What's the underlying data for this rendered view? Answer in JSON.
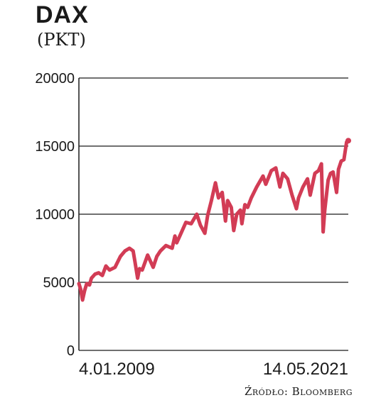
{
  "chart_data": {
    "type": "line",
    "title": "DAX",
    "subtitle": "(PKT)",
    "source": "Źródło: Bloomberg",
    "xlabel": "",
    "ylabel": "",
    "ylim": [
      0,
      20000
    ],
    "yticks": [
      {
        "value": 20000,
        "label": "20000"
      },
      {
        "value": 15000,
        "label": "15000"
      },
      {
        "value": 10000,
        "label": "10000"
      },
      {
        "value": 5000,
        "label": "5000"
      },
      {
        "value": 0,
        "label": "0"
      }
    ],
    "xlim": [
      "2009-01-04",
      "2021-05-14"
    ],
    "xticks": [
      {
        "date": "2009-01-04",
        "label": "4.01.2009"
      },
      {
        "date": "2021-05-14",
        "label": "14.05.2021"
      }
    ],
    "grid": true,
    "line_color": "#d23c55",
    "series": [
      {
        "points": [
          [
            "2009-01-04",
            4900
          ],
          [
            "2009-02-01",
            4500
          ],
          [
            "2009-03-06",
            3700
          ],
          [
            "2009-04-10",
            4400
          ],
          [
            "2009-05-15",
            4900
          ],
          [
            "2009-07-01",
            4800
          ],
          [
            "2009-08-01",
            5300
          ],
          [
            "2009-10-01",
            5600
          ],
          [
            "2009-12-01",
            5700
          ],
          [
            "2010-02-01",
            5500
          ],
          [
            "2010-04-01",
            6200
          ],
          [
            "2010-06-01",
            5900
          ],
          [
            "2010-09-01",
            6100
          ],
          [
            "2010-12-01",
            6900
          ],
          [
            "2011-02-15",
            7300
          ],
          [
            "2011-05-01",
            7500
          ],
          [
            "2011-07-01",
            7300
          ],
          [
            "2011-08-01",
            6500
          ],
          [
            "2011-09-15",
            5300
          ],
          [
            "2011-10-15",
            6000
          ],
          [
            "2011-12-01",
            5900
          ],
          [
            "2012-03-01",
            7000
          ],
          [
            "2012-06-01",
            6100
          ],
          [
            "2012-08-01",
            6900
          ],
          [
            "2012-10-01",
            7300
          ],
          [
            "2013-01-01",
            7700
          ],
          [
            "2013-04-15",
            7500
          ],
          [
            "2013-06-01",
            8400
          ],
          [
            "2013-07-01",
            7900
          ],
          [
            "2013-09-01",
            8500
          ],
          [
            "2013-12-01",
            9400
          ],
          [
            "2014-03-01",
            9300
          ],
          [
            "2014-06-01",
            10000
          ],
          [
            "2014-08-01",
            9200
          ],
          [
            "2014-10-15",
            8600
          ],
          [
            "2014-12-01",
            9900
          ],
          [
            "2015-02-01",
            11000
          ],
          [
            "2015-04-10",
            12300
          ],
          [
            "2015-06-01",
            11200
          ],
          [
            "2015-08-01",
            11600
          ],
          [
            "2015-09-25",
            9500
          ],
          [
            "2015-11-01",
            11000
          ],
          [
            "2016-01-01",
            10500
          ],
          [
            "2016-02-11",
            8800
          ],
          [
            "2016-04-01",
            10000
          ],
          [
            "2016-06-01",
            10300
          ],
          [
            "2016-06-27",
            9300
          ],
          [
            "2016-08-15",
            10700
          ],
          [
            "2016-10-01",
            10500
          ],
          [
            "2016-12-01",
            11200
          ],
          [
            "2017-03-01",
            12000
          ],
          [
            "2017-06-15",
            12800
          ],
          [
            "2017-08-01",
            12200
          ],
          [
            "2017-11-01",
            13200
          ],
          [
            "2018-01-15",
            13400
          ],
          [
            "2018-03-25",
            12000
          ],
          [
            "2018-05-15",
            13000
          ],
          [
            "2018-08-01",
            12600
          ],
          [
            "2018-10-15",
            11400
          ],
          [
            "2018-12-27",
            10400
          ],
          [
            "2019-02-01",
            11200
          ],
          [
            "2019-04-15",
            12000
          ],
          [
            "2019-07-01",
            12600
          ],
          [
            "2019-08-15",
            11400
          ],
          [
            "2019-11-01",
            13000
          ],
          [
            "2020-01-01",
            13200
          ],
          [
            "2020-02-19",
            13700
          ],
          [
            "2020-03-18",
            8700
          ],
          [
            "2020-04-15",
            10300
          ],
          [
            "2020-06-10",
            12500
          ],
          [
            "2020-07-20",
            13000
          ],
          [
            "2020-09-01",
            13100
          ],
          [
            "2020-10-30",
            11600
          ],
          [
            "2020-12-01",
            13300
          ],
          [
            "2021-01-15",
            13900
          ],
          [
            "2021-03-01",
            14000
          ],
          [
            "2021-04-15",
            15300
          ],
          [
            "2021-05-14",
            15400
          ]
        ]
      }
    ]
  }
}
